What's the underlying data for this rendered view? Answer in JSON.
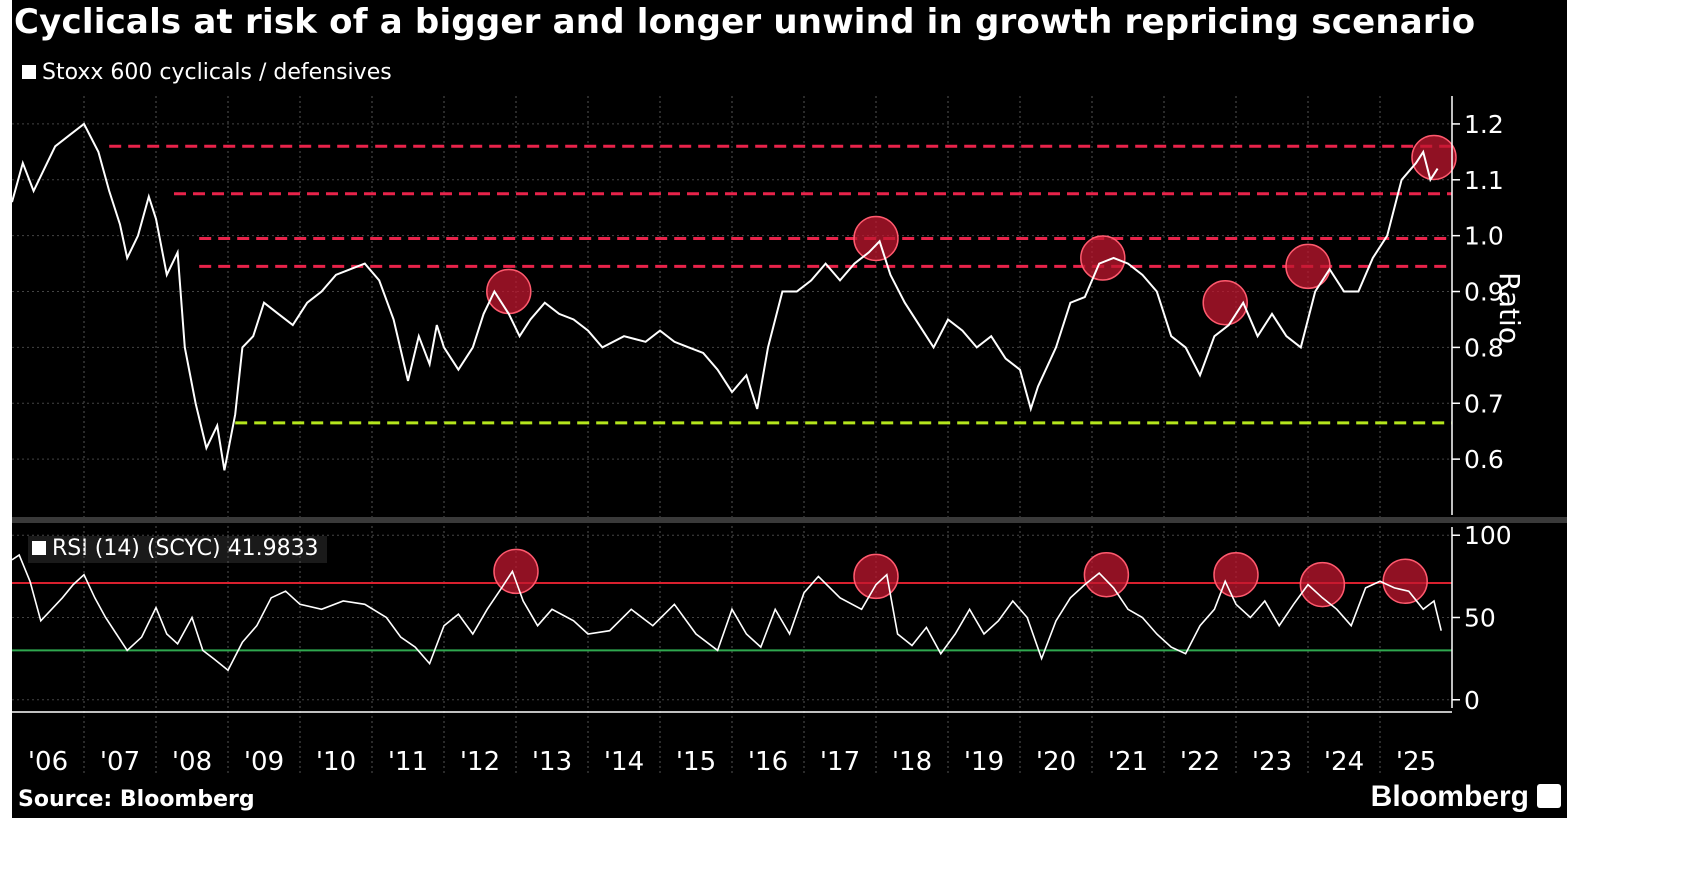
{
  "title": "Cyclicals at risk of a bigger and longer unwind in growth repricing scenario",
  "source": "Source: Bloomberg",
  "brand": "Bloomberg",
  "colors": {
    "background": "#000000",
    "line": "#ffffff",
    "resistance": "#e8234a",
    "support": "#b5e61d",
    "circle": "#c0172f",
    "overbought": "#d9202e",
    "oversold": "#2fa84f"
  },
  "chart_data": [
    {
      "type": "line",
      "legend": "Stoxx 600 cyclicals / defensives",
      "ylabel": "Ratio",
      "ylim": [
        0.5,
        1.25
      ],
      "yticks": [
        "0.6",
        "0.7",
        "0.8",
        "0.9",
        "1.0",
        "1.1",
        "1.2"
      ],
      "xlim": [
        2006.0,
        2026.0
      ],
      "x_tick_labels": [
        "'06",
        "'07",
        "'08",
        "'09",
        "'10",
        "'11",
        "'12",
        "'13",
        "'14",
        "'15",
        "'16",
        "'17",
        "'18",
        "'19",
        "'20",
        "'21",
        "'22",
        "'23",
        "'24",
        "'25"
      ],
      "series": [
        {
          "x": [
            2006.0,
            2006.15,
            2006.3,
            2006.45,
            2006.6,
            2006.8,
            2007.0,
            2007.2,
            2007.35,
            2007.5,
            2007.6,
            2007.75,
            2007.9,
            2008.0,
            2008.15,
            2008.3,
            2008.4,
            2008.55,
            2008.7,
            2008.85,
            2008.95,
            2009.1,
            2009.2,
            2009.35,
            2009.5,
            2009.7,
            2009.9,
            2010.1,
            2010.3,
            2010.5,
            2010.7,
            2010.9,
            2011.1,
            2011.3,
            2011.5,
            2011.65,
            2011.8,
            2011.9,
            2012.0,
            2012.2,
            2012.4,
            2012.55,
            2012.7,
            2012.9,
            2013.05,
            2013.2,
            2013.4,
            2013.6,
            2013.8,
            2014.0,
            2014.2,
            2014.5,
            2014.8,
            2015.0,
            2015.2,
            2015.4,
            2015.6,
            2015.8,
            2016.0,
            2016.2,
            2016.35,
            2016.5,
            2016.7,
            2016.9,
            2017.1,
            2017.3,
            2017.5,
            2017.7,
            2017.9,
            2018.05,
            2018.2,
            2018.4,
            2018.6,
            2018.8,
            2019.0,
            2019.2,
            2019.4,
            2019.6,
            2019.8,
            2020.0,
            2020.15,
            2020.25,
            2020.5,
            2020.7,
            2020.9,
            2021.1,
            2021.3,
            2021.5,
            2021.7,
            2021.9,
            2022.1,
            2022.3,
            2022.5,
            2022.7,
            2022.9,
            2023.1,
            2023.3,
            2023.5,
            2023.7,
            2023.9,
            2024.1,
            2024.3,
            2024.5,
            2024.7,
            2024.9,
            2025.1,
            2025.3,
            2025.5,
            2025.6,
            2025.7,
            2025.8
          ],
          "y": [
            1.06,
            1.13,
            1.08,
            1.12,
            1.16,
            1.18,
            1.2,
            1.15,
            1.08,
            1.02,
            0.96,
            1.0,
            1.07,
            1.03,
            0.93,
            0.97,
            0.8,
            0.7,
            0.62,
            0.66,
            0.58,
            0.68,
            0.8,
            0.82,
            0.88,
            0.86,
            0.84,
            0.88,
            0.9,
            0.93,
            0.94,
            0.95,
            0.92,
            0.85,
            0.74,
            0.82,
            0.77,
            0.84,
            0.8,
            0.76,
            0.8,
            0.86,
            0.9,
            0.86,
            0.82,
            0.85,
            0.88,
            0.86,
            0.85,
            0.83,
            0.8,
            0.82,
            0.81,
            0.83,
            0.81,
            0.8,
            0.79,
            0.76,
            0.72,
            0.75,
            0.69,
            0.8,
            0.9,
            0.9,
            0.92,
            0.95,
            0.92,
            0.95,
            0.97,
            0.99,
            0.93,
            0.88,
            0.84,
            0.8,
            0.85,
            0.83,
            0.8,
            0.82,
            0.78,
            0.76,
            0.69,
            0.73,
            0.8,
            0.88,
            0.89,
            0.95,
            0.96,
            0.95,
            0.93,
            0.9,
            0.82,
            0.8,
            0.75,
            0.82,
            0.84,
            0.88,
            0.82,
            0.86,
            0.82,
            0.8,
            0.9,
            0.94,
            0.9,
            0.9,
            0.96,
            1.0,
            1.1,
            1.13,
            1.15,
            1.1,
            1.12
          ]
        }
      ],
      "reference_lines": [
        {
          "y": 1.16,
          "color": "#e8234a",
          "start_x": 2007.35
        },
        {
          "y": 1.075,
          "color": "#e8234a",
          "start_x": 2008.25
        },
        {
          "y": 0.995,
          "color": "#e8234a",
          "start_x": 2008.6
        },
        {
          "y": 0.945,
          "color": "#e8234a",
          "start_x": 2008.6
        },
        {
          "y": 0.665,
          "color": "#b5e61d",
          "start_x": 2009.1
        }
      ],
      "highlight_circles": [
        {
          "x": 2012.9,
          "y": 0.9
        },
        {
          "x": 2018.0,
          "y": 0.995
        },
        {
          "x": 2021.15,
          "y": 0.96
        },
        {
          "x": 2022.85,
          "y": 0.88
        },
        {
          "x": 2024.0,
          "y": 0.945
        },
        {
          "x": 2025.75,
          "y": 1.14
        }
      ]
    },
    {
      "type": "line",
      "legend": "RSI (14) (SCYC) 41.9833",
      "ylim": [
        -5,
        105
      ],
      "yticks": [
        "0",
        "50",
        "100"
      ],
      "reference_lines": [
        {
          "y": 71,
          "color": "#d9202e"
        },
        {
          "y": 30,
          "color": "#2fa84f"
        }
      ],
      "series": [
        {
          "x": [
            2006.0,
            2006.1,
            2006.25,
            2006.4,
            2006.55,
            2006.7,
            2006.85,
            2007.0,
            2007.15,
            2007.3,
            2007.45,
            2007.6,
            2007.8,
            2008.0,
            2008.15,
            2008.3,
            2008.5,
            2008.65,
            2008.8,
            2009.0,
            2009.2,
            2009.4,
            2009.6,
            2009.8,
            2010.0,
            2010.3,
            2010.6,
            2010.9,
            2011.2,
            2011.4,
            2011.6,
            2011.8,
            2012.0,
            2012.2,
            2012.4,
            2012.6,
            2012.8,
            2012.95,
            2013.1,
            2013.3,
            2013.5,
            2013.8,
            2014.0,
            2014.3,
            2014.6,
            2014.9,
            2015.2,
            2015.5,
            2015.8,
            2016.0,
            2016.2,
            2016.4,
            2016.6,
            2016.8,
            2017.0,
            2017.2,
            2017.5,
            2017.8,
            2018.0,
            2018.15,
            2018.3,
            2018.5,
            2018.7,
            2018.9,
            2019.1,
            2019.3,
            2019.5,
            2019.7,
            2019.9,
            2020.1,
            2020.3,
            2020.5,
            2020.7,
            2020.9,
            2021.1,
            2021.3,
            2021.5,
            2021.7,
            2021.9,
            2022.1,
            2022.3,
            2022.5,
            2022.7,
            2022.85,
            2023.0,
            2023.2,
            2023.4,
            2023.6,
            2023.8,
            2024.0,
            2024.2,
            2024.4,
            2024.6,
            2024.8,
            2025.0,
            2025.2,
            2025.4,
            2025.6,
            2025.75,
            2025.85
          ],
          "y": [
            85,
            88,
            72,
            48,
            55,
            62,
            70,
            76,
            62,
            50,
            40,
            30,
            38,
            56,
            40,
            34,
            50,
            30,
            25,
            18,
            35,
            45,
            62,
            66,
            58,
            55,
            60,
            58,
            50,
            38,
            32,
            22,
            45,
            52,
            40,
            55,
            68,
            78,
            60,
            45,
            55,
            48,
            40,
            42,
            55,
            45,
            58,
            40,
            30,
            55,
            40,
            32,
            55,
            40,
            65,
            75,
            62,
            55,
            70,
            76,
            40,
            33,
            44,
            28,
            40,
            55,
            40,
            48,
            60,
            50,
            25,
            48,
            62,
            70,
            77,
            68,
            55,
            50,
            40,
            32,
            28,
            45,
            55,
            72,
            58,
            50,
            60,
            45,
            58,
            70,
            62,
            55,
            45,
            68,
            72,
            68,
            66,
            55,
            60,
            42
          ]
        }
      ],
      "highlight_circles": [
        {
          "x": 2013.0,
          "y": 78
        },
        {
          "x": 2018.0,
          "y": 75
        },
        {
          "x": 2021.2,
          "y": 76
        },
        {
          "x": 2023.0,
          "y": 76
        },
        {
          "x": 2024.2,
          "y": 70
        },
        {
          "x": 2025.35,
          "y": 72
        }
      ]
    }
  ]
}
